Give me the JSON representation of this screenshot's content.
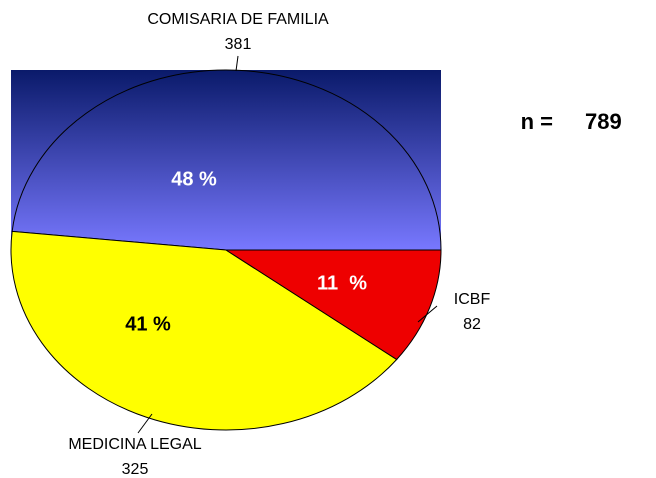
{
  "chart_data": {
    "type": "pie",
    "categories": [
      "COMISARIA DE FAMILIA",
      "MEDICINA LEGAL",
      "ICBF"
    ],
    "values": [
      381,
      325,
      82
    ],
    "percent_values": [
      48,
      41,
      11
    ],
    "percent_labels": [
      "48 %",
      "41 %",
      "11  %"
    ],
    "colors": [
      [
        "#0a1a6a",
        "#7878ff"
      ],
      "#ffff00",
      "#ee0000"
    ],
    "n_label": "n =",
    "n": 789
  }
}
